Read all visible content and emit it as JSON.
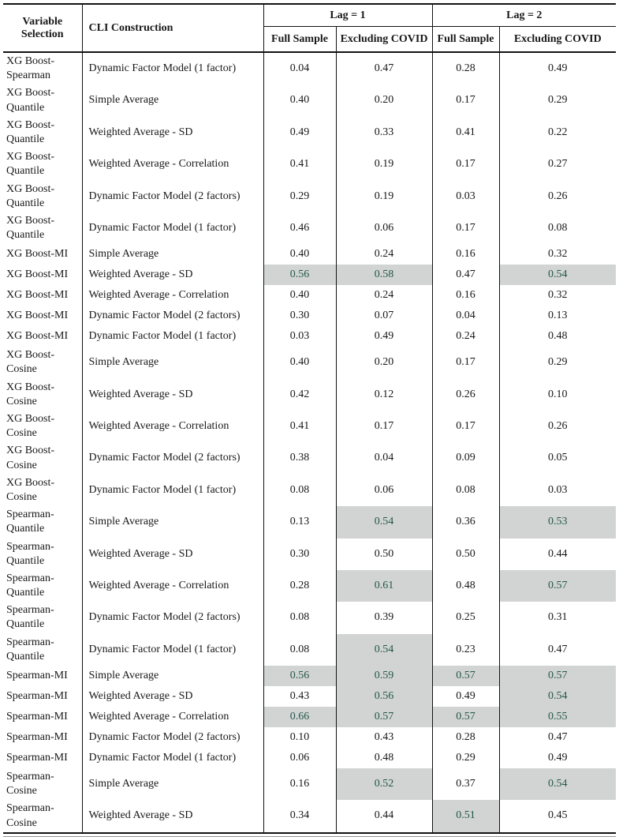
{
  "table": {
    "header": {
      "variable": "Variable Selection",
      "construction": "CLI Construction",
      "lag1": "Lag = 1",
      "lag2": "Lag = 2",
      "sub": [
        "Full Sample",
        "Excluding COVID",
        "Full Sample",
        "Excluding COVID"
      ]
    },
    "colors": {
      "highlight_bg": "#d2d4d3",
      "highlight_text": "#23584a",
      "text": "#181818",
      "rule": "#121212"
    },
    "rows": [
      {
        "variable": "XG Boost-Spearman",
        "construction": "Dynamic Factor Model (1 factor)",
        "values": [
          "0.04",
          "0.47",
          "0.28",
          "0.49"
        ],
        "highlight": [
          false,
          false,
          false,
          false
        ]
      },
      {
        "variable": "XG Boost-Quantile",
        "construction": "Simple Average",
        "values": [
          "0.40",
          "0.20",
          "0.17",
          "0.29"
        ],
        "highlight": [
          false,
          false,
          false,
          false
        ]
      },
      {
        "variable": "XG Boost-Quantile",
        "construction": "Weighted Average - SD",
        "values": [
          "0.49",
          "0.33",
          "0.41",
          "0.22"
        ],
        "highlight": [
          false,
          false,
          false,
          false
        ]
      },
      {
        "variable": "XG Boost-Quantile",
        "construction": "Weighted Average - Correlation",
        "values": [
          "0.41",
          "0.19",
          "0.17",
          "0.27"
        ],
        "highlight": [
          false,
          false,
          false,
          false
        ]
      },
      {
        "variable": "XG Boost-Quantile",
        "construction": "Dynamic Factor Model (2 factors)",
        "values": [
          "0.29",
          "0.19",
          "0.03",
          "0.26"
        ],
        "highlight": [
          false,
          false,
          false,
          false
        ]
      },
      {
        "variable": "XG Boost-Quantile",
        "construction": "Dynamic Factor Model (1 factor)",
        "values": [
          "0.46",
          "0.06",
          "0.17",
          "0.08"
        ],
        "highlight": [
          false,
          false,
          false,
          false
        ]
      },
      {
        "variable": "XG Boost-MI",
        "construction": "Simple Average",
        "values": [
          "0.40",
          "0.24",
          "0.16",
          "0.32"
        ],
        "highlight": [
          false,
          false,
          false,
          false
        ]
      },
      {
        "variable": "XG Boost-MI",
        "construction": "Weighted Average - SD",
        "values": [
          "0.56",
          "0.58",
          "0.47",
          "0.54"
        ],
        "highlight": [
          true,
          true,
          false,
          true
        ]
      },
      {
        "variable": "XG Boost-MI",
        "construction": "Weighted Average - Correlation",
        "values": [
          "0.40",
          "0.24",
          "0.16",
          "0.32"
        ],
        "highlight": [
          false,
          false,
          false,
          false
        ]
      },
      {
        "variable": "XG Boost-MI",
        "construction": "Dynamic Factor Model (2 factors)",
        "values": [
          "0.30",
          "0.07",
          "0.04",
          "0.13"
        ],
        "highlight": [
          false,
          false,
          false,
          false
        ]
      },
      {
        "variable": "XG Boost-MI",
        "construction": "Dynamic Factor Model (1 factor)",
        "values": [
          "0.03",
          "0.49",
          "0.24",
          "0.48"
        ],
        "highlight": [
          false,
          false,
          false,
          false
        ]
      },
      {
        "variable": "XG Boost-Cosine",
        "construction": "Simple Average",
        "values": [
          "0.40",
          "0.20",
          "0.17",
          "0.29"
        ],
        "highlight": [
          false,
          false,
          false,
          false
        ]
      },
      {
        "variable": "XG Boost-Cosine",
        "construction": "Weighted Average - SD",
        "values": [
          "0.42",
          "0.12",
          "0.26",
          "0.10"
        ],
        "highlight": [
          false,
          false,
          false,
          false
        ]
      },
      {
        "variable": "XG Boost-Cosine",
        "construction": "Weighted Average - Correlation",
        "values": [
          "0.41",
          "0.17",
          "0.17",
          "0.26"
        ],
        "highlight": [
          false,
          false,
          false,
          false
        ]
      },
      {
        "variable": "XG Boost-Cosine",
        "construction": "Dynamic Factor Model (2 factors)",
        "values": [
          "0.38",
          "0.04",
          "0.09",
          "0.05"
        ],
        "highlight": [
          false,
          false,
          false,
          false
        ]
      },
      {
        "variable": "XG Boost-Cosine",
        "construction": "Dynamic Factor Model (1 factor)",
        "values": [
          "0.08",
          "0.06",
          "0.08",
          "0.03"
        ],
        "highlight": [
          false,
          false,
          false,
          false
        ]
      },
      {
        "variable": "Spearman-Quantile",
        "construction": "Simple Average",
        "values": [
          "0.13",
          "0.54",
          "0.36",
          "0.53"
        ],
        "highlight": [
          false,
          true,
          false,
          true
        ]
      },
      {
        "variable": "Spearman-Quantile",
        "construction": "Weighted Average - SD",
        "values": [
          "0.30",
          "0.50",
          "0.50",
          "0.44"
        ],
        "highlight": [
          false,
          false,
          false,
          false
        ]
      },
      {
        "variable": "Spearman-Quantile",
        "construction": "Weighted Average - Correlation",
        "values": [
          "0.28",
          "0.61",
          "0.48",
          "0.57"
        ],
        "highlight": [
          false,
          true,
          false,
          true
        ]
      },
      {
        "variable": "Spearman-Quantile",
        "construction": "Dynamic Factor Model (2 factors)",
        "values": [
          "0.08",
          "0.39",
          "0.25",
          "0.31"
        ],
        "highlight": [
          false,
          false,
          false,
          false
        ]
      },
      {
        "variable": "Spearman-Quantile",
        "construction": "Dynamic Factor Model (1 factor)",
        "values": [
          "0.08",
          "0.54",
          "0.23",
          "0.47"
        ],
        "highlight": [
          false,
          true,
          false,
          false
        ]
      },
      {
        "variable": "Spearman-MI",
        "construction": "Simple Average",
        "values": [
          "0.56",
          "0.59",
          "0.57",
          "0.57"
        ],
        "highlight": [
          true,
          true,
          true,
          true
        ]
      },
      {
        "variable": "Spearman-MI",
        "construction": "Weighted Average - SD",
        "values": [
          "0.43",
          "0.56",
          "0.49",
          "0.54"
        ],
        "highlight": [
          false,
          true,
          false,
          true
        ]
      },
      {
        "variable": "Spearman-MI",
        "construction": "Weighted Average - Correlation",
        "values": [
          "0.66",
          "0.57",
          "0.57",
          "0.55"
        ],
        "highlight": [
          true,
          true,
          true,
          true
        ]
      },
      {
        "variable": "Spearman-MI",
        "construction": "Dynamic Factor Model (2 factors)",
        "values": [
          "0.10",
          "0.43",
          "0.28",
          "0.47"
        ],
        "highlight": [
          false,
          false,
          false,
          false
        ]
      },
      {
        "variable": "Spearman-MI",
        "construction": "Dynamic Factor Model (1 factor)",
        "values": [
          "0.06",
          "0.48",
          "0.29",
          "0.49"
        ],
        "highlight": [
          false,
          false,
          false,
          false
        ]
      },
      {
        "variable": "Spearman-Cosine",
        "construction": "Simple Average",
        "values": [
          "0.16",
          "0.52",
          "0.37",
          "0.54"
        ],
        "highlight": [
          false,
          true,
          false,
          true
        ]
      },
      {
        "variable": "Spearman-Cosine",
        "construction": "Weighted Average - SD",
        "values": [
          "0.34",
          "0.44",
          "0.51",
          "0.45"
        ],
        "highlight": [
          false,
          false,
          true,
          false
        ]
      }
    ]
  }
}
